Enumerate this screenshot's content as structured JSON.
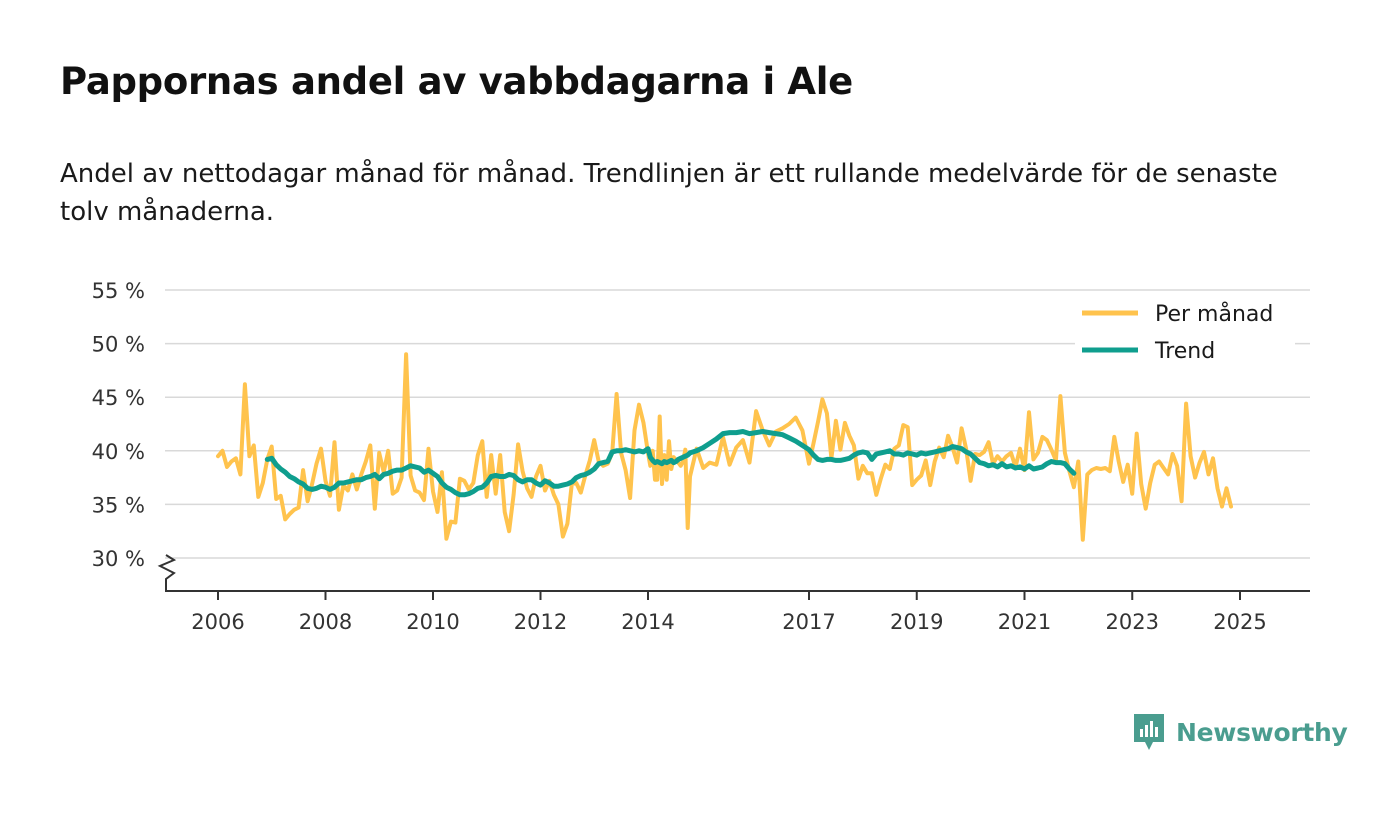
{
  "title": "Pappornas andel av vabbdagarna i Ale",
  "subtitle": "Andel av nettodagar månad för månad. Trendlinjen är ett rullande medelvärde för de senaste tolv månaderna.",
  "brand": {
    "name": "Newsworthy",
    "icon": "newsworthy-logo-icon",
    "color": "#4a9d8f"
  },
  "colors": {
    "monthly": "#FFC34D",
    "trend": "#0F9E8E",
    "grid": "#d9d9d9",
    "axis": "#333333"
  },
  "chart_data": {
    "type": "line",
    "ylim": [
      27,
      55
    ],
    "y_ticks": [
      30,
      35,
      40,
      45,
      50,
      55
    ],
    "y_tick_labels": [
      "30 %",
      "35 %",
      "40 %",
      "45 %",
      "50 %",
      "55 %"
    ],
    "x_ticks": [
      2006,
      2008,
      2010,
      2012,
      2014,
      2017,
      2019,
      2021,
      2023,
      2025
    ],
    "x_tick_labels": [
      "2006",
      "2008",
      "2010",
      "2012",
      "2014",
      "2017",
      "2019",
      "2021",
      "2023",
      "2025"
    ],
    "legend": [
      "Per månad",
      "Trend"
    ],
    "legend_position": "top-right",
    "series": [
      {
        "name": "Per månad",
        "start": 2006.0,
        "step": 0.08333,
        "values": [
          39.5,
          40.0,
          38.5,
          39.0,
          39.3,
          37.8,
          46.2,
          39.5,
          40.5,
          35.7,
          37.0,
          39.2,
          40.4,
          35.5,
          35.8,
          33.6,
          34.1,
          34.5,
          34.7,
          38.2,
          35.3,
          36.9,
          38.8,
          40.2,
          37.2,
          35.8,
          40.8,
          34.5,
          36.8,
          36.3,
          37.8,
          36.4,
          37.8,
          39.0,
          40.5,
          34.6,
          39.8,
          38.0,
          40.0,
          36.0,
          36.3,
          37.5,
          49.0,
          37.7,
          36.3,
          36.1,
          35.4,
          40.2,
          36.2,
          34.3,
          38.0,
          31.8,
          33.4,
          33.3,
          37.4,
          37.2,
          36.4,
          37.0,
          39.6,
          40.9,
          35.7,
          39.6,
          36.0,
          39.6,
          34.3,
          32.5,
          35.9,
          40.6,
          38.1,
          36.5,
          35.7,
          37.6,
          38.6,
          36.3,
          37.2,
          35.9,
          35.0,
          32.0,
          33.2,
          36.9,
          37.0,
          36.1,
          37.7,
          39.1,
          41.0,
          39.0,
          38.6,
          38.8,
          39.8,
          45.3,
          39.8,
          38.2,
          35.6,
          41.9,
          44.3,
          42.6,
          39.8,
          38.6,
          40.0,
          37.3,
          37.3,
          43.2,
          36.9,
          39.6,
          37.3,
          40.9,
          38.3,
          39.4,
          39.1,
          38.9,
          38.6,
          39.0,
          40.1,
          32.8,
          37.6,
          40.2,
          38.4,
          38.9,
          38.7,
          41.3,
          38.7,
          40.3,
          41.0,
          38.9,
          43.7,
          41.9,
          40.5,
          41.8,
          42.1,
          42.5,
          43.1,
          41.9,
          38.8,
          40.7,
          42.7,
          44.8,
          43.5,
          39.3,
          42.8,
          40.1,
          42.6,
          41.4,
          40.5,
          37.4,
          38.6,
          37.9,
          37.9,
          35.9,
          37.4,
          38.7,
          38.3,
          40.2,
          40.5,
          42.4,
          42.2,
          36.8,
          37.3,
          37.7,
          39.1,
          36.8,
          39.0,
          40.3,
          39.4,
          41.4,
          40.3,
          38.9,
          42.1,
          40.2,
          37.2,
          39.7,
          39.6,
          39.9,
          40.8,
          38.8,
          39.5,
          39.0,
          39.5,
          39.8,
          38.5,
          40.2,
          38.2,
          43.6,
          39.2,
          39.8,
          41.3,
          41.0,
          40.1,
          39.1,
          45.1,
          39.8,
          38.1,
          36.6,
          39.0,
          31.7,
          37.8,
          38.2,
          38.4,
          38.3,
          38.4,
          38.1,
          41.3,
          39.0,
          37.1,
          38.7,
          36.0,
          41.6,
          36.9,
          34.6,
          37.0,
          38.7,
          39.0,
          38.4,
          37.8,
          39.7,
          38.6,
          35.3,
          44.4,
          39.5,
          37.5,
          38.9,
          39.9,
          37.8,
          39.3,
          36.5,
          34.8,
          36.5,
          34.8
        ]
      },
      {
        "name": "Trend",
        "start": 2006.917,
        "step": 0.08333,
        "values": [
          39.2,
          39.3,
          38.7,
          38.3,
          38.0,
          37.6,
          37.4,
          37.1,
          36.9,
          36.5,
          36.4,
          36.5,
          36.7,
          36.6,
          36.4,
          36.6,
          37.0,
          37.0,
          37.1,
          37.2,
          37.3,
          37.3,
          37.5,
          37.6,
          37.8,
          37.4,
          37.8,
          37.9,
          38.1,
          38.2,
          38.2,
          38.4,
          38.6,
          38.5,
          38.4,
          38.0,
          38.2,
          37.9,
          37.6,
          37.0,
          36.6,
          36.4,
          36.1,
          35.9,
          35.9,
          36.0,
          36.2,
          36.5,
          36.6,
          37.0,
          37.6,
          37.7,
          37.6,
          37.6,
          37.8,
          37.7,
          37.3,
          37.1,
          37.3,
          37.3,
          37.0,
          36.8,
          37.2,
          37.0,
          36.7,
          36.7,
          36.8,
          36.9,
          37.1,
          37.5,
          37.7,
          37.8,
          38.0,
          38.3,
          38.8,
          38.9,
          39.0,
          39.9,
          40.0,
          40.0,
          40.1,
          40.0,
          39.9,
          40.0,
          39.9,
          40.2,
          39.4,
          39.1,
          38.9,
          39.0,
          38.9,
          38.8,
          39.0,
          38.9,
          39.0,
          39.1,
          38.9,
          39.0,
          39.2,
          39.3,
          39.4,
          39.5,
          39.6,
          39.8,
          40.0,
          40.3,
          40.7,
          41.1,
          41.6,
          41.7,
          41.7,
          41.8,
          41.6,
          41.7,
          41.8,
          41.7,
          41.6,
          41.5,
          41.2,
          40.9,
          40.5,
          40.1,
          39.6,
          39.2,
          39.1,
          39.2,
          39.2,
          39.1,
          39.1,
          39.2,
          39.3,
          39.6,
          39.8,
          39.9,
          39.8,
          39.2,
          39.7,
          39.8,
          39.9,
          40.0,
          39.7,
          39.7,
          39.6,
          39.8,
          39.7,
          39.6,
          39.8,
          39.7,
          39.8,
          39.9,
          40.0,
          40.1,
          40.2,
          40.4,
          40.3,
          40.2,
          39.9,
          39.7,
          39.3,
          38.9,
          38.8,
          38.6,
          38.7,
          38.5,
          38.8,
          38.5,
          38.6,
          38.4,
          38.5,
          38.3,
          38.6,
          38.3,
          38.4,
          38.5,
          38.8,
          39.0,
          38.9,
          38.9,
          38.8,
          38.3,
          37.9
        ]
      }
    ]
  }
}
